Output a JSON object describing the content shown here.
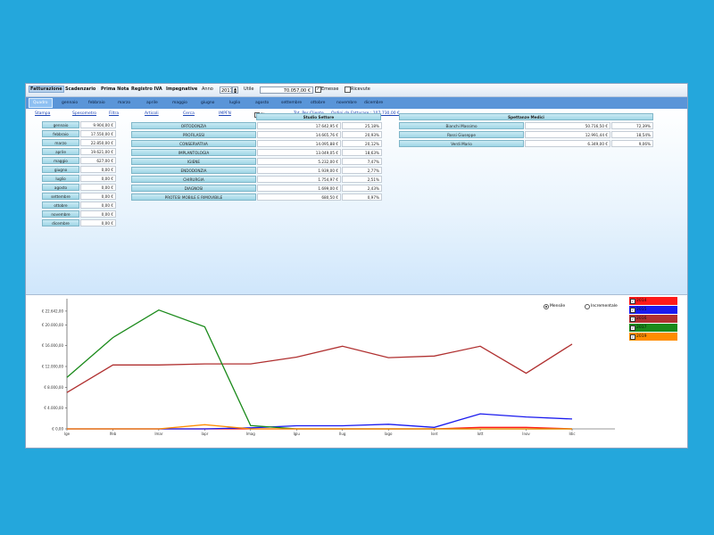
{
  "menu": {
    "items": [
      "Fatturazione",
      "Scadenzario",
      "Prima Nota",
      "Registro IVA",
      "Impegnative"
    ],
    "active_index": 0,
    "anno_label": "Anno",
    "anno_value": "2017",
    "utile_label": "Utile",
    "utile_value": "70.057,00 €",
    "emesse_label": "Emesse",
    "emesse_checked": true,
    "ricevute_label": "Ricevute",
    "ricevute_checked": false
  },
  "months_bar": {
    "tabs": [
      "Quadro",
      "gennaio",
      "febbraio",
      "marzo",
      "aprile",
      "maggio",
      "giugno",
      "luglio",
      "agosto",
      "settembre",
      "ottobre",
      "novembre",
      "dicembre"
    ],
    "active_index": 0
  },
  "toolbar": {
    "stampa": "Stampa",
    "spesometro": "Spesometro",
    "filtra": "Filtra",
    "articoli": "Articoli",
    "cerca": "Cerca",
    "impfn": "IMPFN",
    "filtro_label": "Filtro",
    "tot_per_cliente": "Tot. Per Cliente",
    "ordini_da_fatturare": "Ordini da Fatturare : 107.730,00 €"
  },
  "monthly_totals": [
    {
      "month": "gennaio",
      "value": "9.904,00 €"
    },
    {
      "month": "febbraio",
      "value": "17.550,00 €"
    },
    {
      "month": "marzo",
      "value": "22.850,00 €"
    },
    {
      "month": "aprile",
      "value": "19.621,00 €"
    },
    {
      "month": "maggio",
      "value": "627,00 €"
    },
    {
      "month": "giugno",
      "value": "0,00 €"
    },
    {
      "month": "luglio",
      "value": "0,00 €"
    },
    {
      "month": "agosto",
      "value": "0,00 €"
    },
    {
      "month": "settembre",
      "value": "0,00 €"
    },
    {
      "month": "ottobre",
      "value": "0,00 €"
    },
    {
      "month": "novembre",
      "value": "0,00 €"
    },
    {
      "month": "dicembre",
      "value": "0,00 €"
    }
  ],
  "studio_settore": {
    "title": "Studio Settore",
    "rows": [
      {
        "name": "ORTODONZIA",
        "value": "17.642,95 €",
        "pct": "25,18%"
      },
      {
        "name": "PROFILASSI",
        "value": "14.665,76 €",
        "pct": "20,93%"
      },
      {
        "name": "CONSERVATIVA",
        "value": "14.095,88 €",
        "pct": "20,12%"
      },
      {
        "name": "IMPLANTOLOGIA",
        "value": "13.049,05 €",
        "pct": "18,63%"
      },
      {
        "name": "IGIENE",
        "value": "5.232,00 €",
        "pct": "7,47%"
      },
      {
        "name": "ENDODONZIA",
        "value": "1.939,00 €",
        "pct": "2,77%"
      },
      {
        "name": "CHIRURGIA",
        "value": "1.754,97 €",
        "pct": "2,51%"
      },
      {
        "name": "DIAGNOSI",
        "value": "1.699,00 €",
        "pct": "2,43%"
      },
      {
        "name": "PROTESI MOBILE E RIMOVIBILE",
        "value": "680,50 €",
        "pct": "0,97%"
      }
    ]
  },
  "spettanze_medici": {
    "title": "Spettanze Medici",
    "rows": [
      {
        "name": "Bianchi Massimo",
        "value": "50.716,50 €",
        "pct": "72,39%"
      },
      {
        "name": "Rossi Giuseppe",
        "value": "12.991,44 €",
        "pct": "18,54%"
      },
      {
        "name": "Verdi Mario",
        "value": "6.349,00 €",
        "pct": "9,06%"
      }
    ]
  },
  "chart_options": {
    "mensile_label": "Mensile",
    "incrementale_label": "Incrementale",
    "selected": "Mensile"
  },
  "chart_data": {
    "type": "line",
    "title": "",
    "xlabel": "",
    "ylabel": "",
    "categories": [
      "Ge",
      "Fe",
      "Ma",
      "Ap",
      "Ma",
      "Gi",
      "Lu",
      "Ag",
      "Se",
      "Ot",
      "No",
      "Di"
    ],
    "x_tick_labels": [
      "Ige",
      "Ifeb",
      "Imar",
      "Iapr",
      "Imag",
      "Igiu",
      "Ilug",
      "Iago",
      "Iset",
      "Iott",
      "Inov",
      "Idic"
    ],
    "y_tick_labels": [
      "€ 0,00",
      "€ 4.000,00",
      "€ 8.000,00",
      "€ 12.000,00",
      "€ 16.000,00",
      "€ 20.000,00",
      "€ 22.642,00"
    ],
    "ylim": [
      0,
      24000
    ],
    "grid": false,
    "legend_position": "right",
    "series": [
      {
        "name": "2014",
        "color": "#ff1a1a",
        "values": [
          0,
          0,
          0,
          0,
          0,
          0,
          0,
          0,
          0,
          300,
          300,
          0
        ]
      },
      {
        "name": "2015",
        "color": "#1a1aee",
        "values": [
          0,
          0,
          0,
          0,
          200,
          600,
          600,
          900,
          300,
          2900,
          2300,
          1900
        ]
      },
      {
        "name": "2016",
        "color": "#b03030",
        "values": [
          7000,
          12300,
          12300,
          12500,
          12500,
          13800,
          15900,
          13700,
          14000,
          15900,
          10700,
          16300
        ]
      },
      {
        "name": "2017",
        "color": "#1a8a1a",
        "values": [
          9904,
          17550,
          22850,
          19621,
          627,
          0,
          0,
          0,
          0,
          0,
          0,
          0
        ]
      },
      {
        "name": "2019",
        "color": "#ff8c00",
        "values": [
          0,
          0,
          0,
          800,
          0,
          0,
          0,
          0,
          0,
          0,
          0,
          0
        ]
      }
    ]
  }
}
